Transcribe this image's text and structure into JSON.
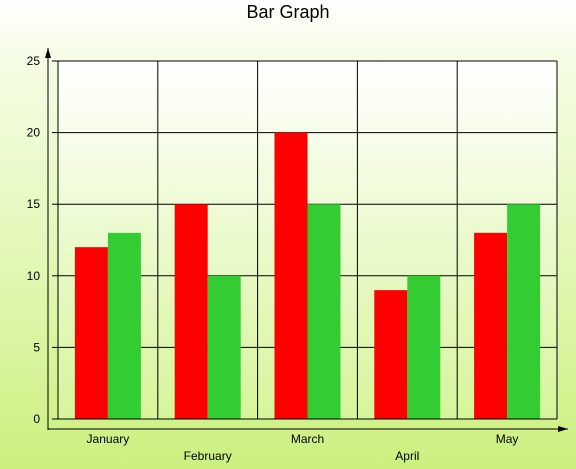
{
  "chart_data": {
    "type": "bar",
    "title": "Bar Graph",
    "xlabel": "",
    "ylabel": "",
    "categories": [
      "January",
      "February",
      "March",
      "April",
      "May"
    ],
    "series": [
      {
        "color": "#ff0000",
        "values": [
          12,
          15,
          20,
          9,
          13
        ]
      },
      {
        "color": "#33cc33",
        "values": [
          13,
          10,
          15,
          10,
          15
        ]
      }
    ],
    "ylim": [
      0,
      25
    ],
    "yticks": [
      0,
      5,
      10,
      15,
      20,
      25
    ],
    "grid": true,
    "legend": "none",
    "x_label_stagger": true
  }
}
